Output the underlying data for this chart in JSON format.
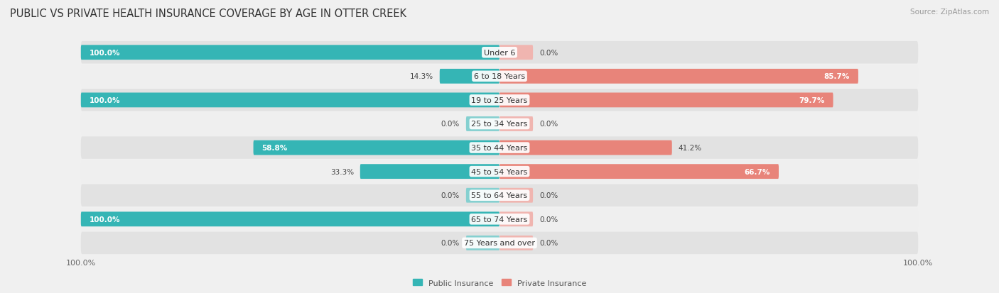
{
  "title": "PUBLIC VS PRIVATE HEALTH INSURANCE COVERAGE BY AGE IN OTTER CREEK",
  "source": "Source: ZipAtlas.com",
  "categories": [
    "Under 6",
    "6 to 18 Years",
    "19 to 25 Years",
    "25 to 34 Years",
    "35 to 44 Years",
    "45 to 54 Years",
    "55 to 64 Years",
    "65 to 74 Years",
    "75 Years and over"
  ],
  "public_values": [
    100.0,
    14.3,
    100.0,
    0.0,
    58.8,
    33.3,
    0.0,
    100.0,
    0.0
  ],
  "private_values": [
    0.0,
    85.7,
    79.7,
    0.0,
    41.2,
    66.7,
    0.0,
    0.0,
    0.0
  ],
  "public_color": "#35b5b5",
  "private_color": "#e8847a",
  "public_color_light": "#85d0d0",
  "private_color_light": "#f0b5b0",
  "row_bg_dark": "#e2e2e2",
  "row_bg_light": "#efefef",
  "background_color": "#f0f0f0",
  "bar_height": 0.62,
  "title_fontsize": 10.5,
  "label_fontsize": 8,
  "value_fontsize": 7.5,
  "tick_fontsize": 8,
  "legend_fontsize": 8,
  "stub_size": 8.0,
  "max_val": 100.0
}
